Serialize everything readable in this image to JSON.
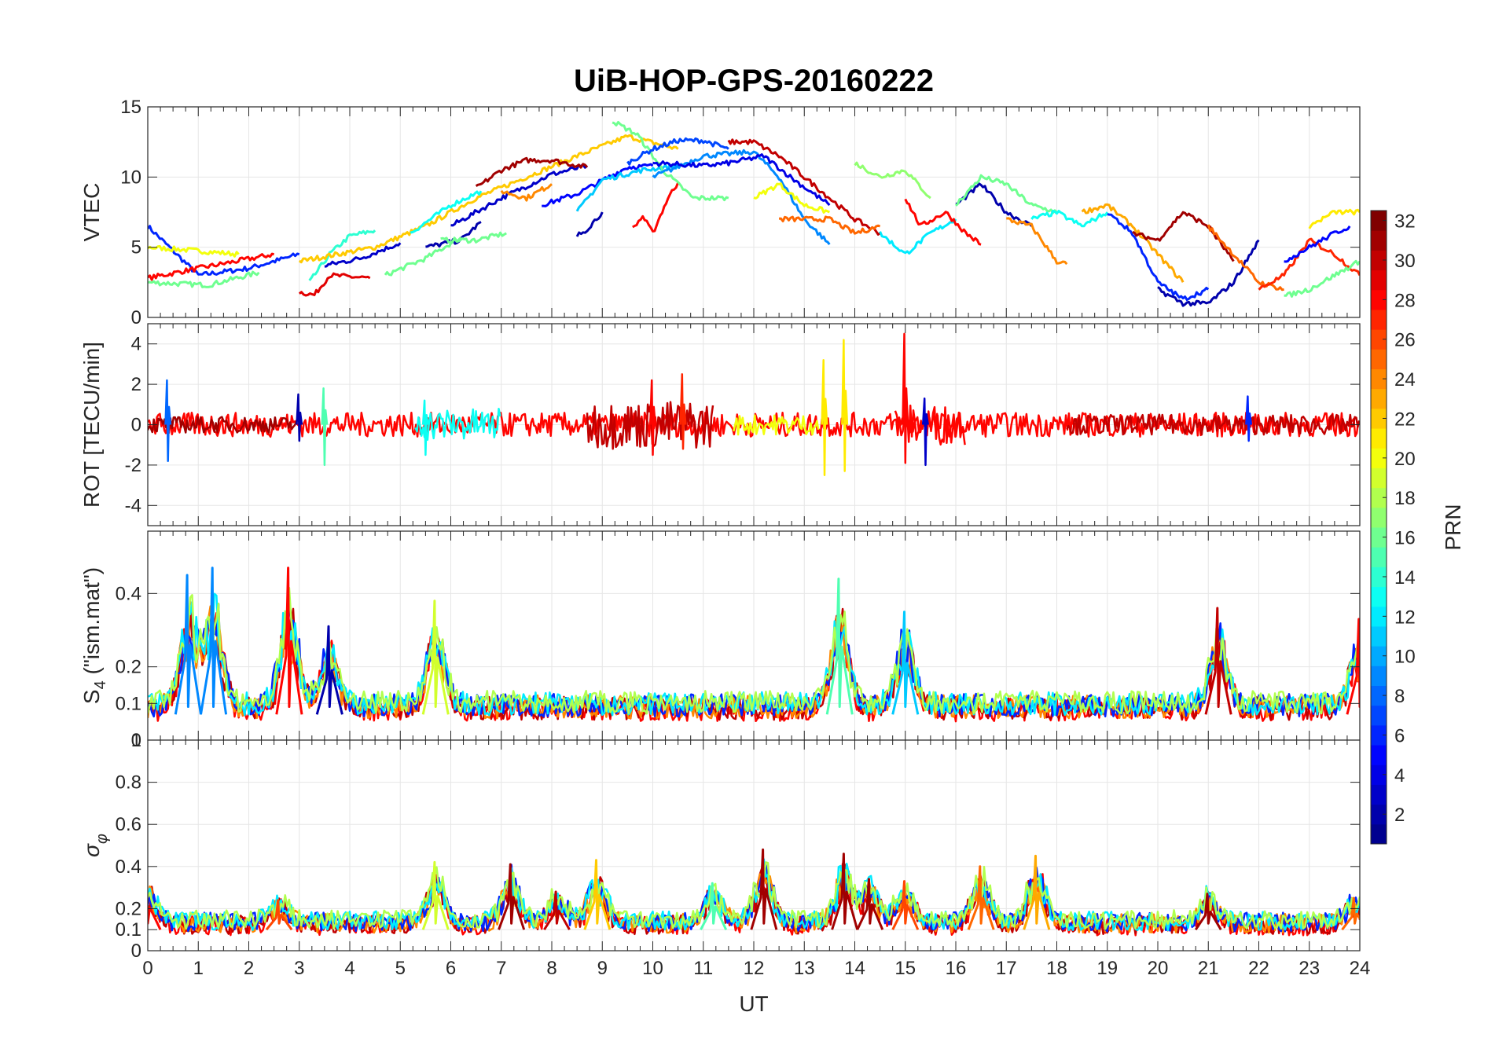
{
  "chart_data": {
    "type": "line",
    "title": "UiB-HOP-GPS-20160222",
    "xlabel": "UT",
    "xlim": [
      0,
      24
    ],
    "x_ticks": [
      "0",
      "1",
      "2",
      "3",
      "4",
      "5",
      "6",
      "7",
      "8",
      "9",
      "10",
      "11",
      "12",
      "13",
      "14",
      "15",
      "16",
      "17",
      "18",
      "19",
      "20",
      "21",
      "22",
      "23",
      "24"
    ],
    "grid": true,
    "colorbar": {
      "label": "PRN",
      "range": [
        1,
        32
      ],
      "ticks": [
        "2",
        "4",
        "6",
        "8",
        "10",
        "12",
        "14",
        "16",
        "18",
        "20",
        "22",
        "24",
        "26",
        "28",
        "30",
        "32"
      ],
      "colormap": [
        "#00008f",
        "#0000ff",
        "#0080ff",
        "#00ffff",
        "#80ff80",
        "#ffff00",
        "#ff8000",
        "#ff0000",
        "#800000"
      ],
      "placement": "right"
    },
    "panels": [
      {
        "ylabel": "VTEC",
        "ylim": [
          0,
          15
        ],
        "y_ticks": [
          "0",
          "5",
          "10",
          "15"
        ],
        "series": [
          {
            "prn": 6,
            "x": [
              0,
              1,
              2,
              3
            ],
            "y": [
              6.5,
              3.0,
              3.5,
              4.5
            ]
          },
          {
            "prn": 20,
            "x": [
              0,
              0.8,
              1.8
            ],
            "y": [
              5.0,
              4.8,
              4.5
            ]
          },
          {
            "prn": 28,
            "x": [
              0,
              1,
              2.5
            ],
            "y": [
              2.8,
              3.5,
              4.5
            ]
          },
          {
            "prn": 16,
            "x": [
              0,
              1.2,
              2.2
            ],
            "y": [
              2.5,
              2.3,
              3.2
            ]
          },
          {
            "prn": 29,
            "x": [
              3,
              3.3,
              3.6,
              4.4
            ],
            "y": [
              1.8,
              1.6,
              3.0,
              2.8
            ]
          },
          {
            "prn": 14,
            "x": [
              3.2,
              3.6,
              4,
              4.5
            ],
            "y": [
              2.5,
              4.5,
              5.8,
              6.2
            ]
          },
          {
            "prn": 22,
            "x": [
              3,
              4.5,
              5.5,
              6.5,
              7.5,
              8.5,
              9.5,
              10.5
            ],
            "y": [
              4.0,
              5.0,
              6.5,
              8.5,
              10.0,
              11.5,
              12.9,
              12.0
            ]
          },
          {
            "prn": 3,
            "x": [
              3.5,
              4.2,
              5
            ],
            "y": [
              3.7,
              4.2,
              5.3
            ]
          },
          {
            "prn": 2,
            "x": [
              5.5,
              6.2,
              6.6
            ],
            "y": [
              5.0,
              5.5,
              6.8
            ]
          },
          {
            "prn": 16,
            "x": [
              4.7,
              5.5,
              6.2
            ],
            "y": [
              3.0,
              4.2,
              5.7
            ]
          },
          {
            "prn": 13,
            "x": [
              5.2,
              6.0,
              6.6
            ],
            "y": [
              6.0,
              8.0,
              9.0
            ]
          },
          {
            "prn": 16,
            "x": [
              5.8,
              6.5,
              7.1
            ],
            "y": [
              5.5,
              5.5,
              6.0
            ]
          },
          {
            "prn": 3,
            "x": [
              6.0,
              7.0,
              8.0,
              8.7
            ],
            "y": [
              6.5,
              8.5,
              10.2,
              10.8
            ]
          },
          {
            "prn": 31,
            "x": [
              6.5,
              7.0,
              7.5,
              8.0,
              8.7
            ],
            "y": [
              9.2,
              10.5,
              11.2,
              11.2,
              10.7
            ]
          },
          {
            "prn": 24,
            "x": [
              7.0,
              7.5,
              8.0
            ],
            "y": [
              9.0,
              8.5,
              9.5
            ]
          },
          {
            "prn": 5,
            "x": [
              7.8,
              8.5,
              9.5,
              10.0
            ],
            "y": [
              8.0,
              8.8,
              10.7,
              10.8
            ]
          },
          {
            "prn": 2,
            "x": [
              8.5,
              8.7,
              9.0
            ],
            "y": [
              5.8,
              6.3,
              7.5
            ]
          },
          {
            "prn": 11,
            "x": [
              8.5,
              9.0,
              9.8,
              10.5
            ],
            "y": [
              7.5,
              9.8,
              10.5,
              10.8
            ]
          },
          {
            "prn": 28,
            "x": [
              9.6,
              9.8,
              10.0,
              10.3,
              10.5
            ],
            "y": [
              6.3,
              7.2,
              6.0,
              8.5,
              9.6
            ]
          },
          {
            "prn": 16,
            "x": [
              9.2,
              9.7,
              10.2,
              10.8,
              11.5
            ],
            "y": [
              14.0,
              13.0,
              10.5,
              8.5,
              8.5
            ]
          },
          {
            "prn": 7,
            "x": [
              9.5,
              10.0,
              10.5,
              11.0,
              11.5
            ],
            "y": [
              11.0,
              12.0,
              12.6,
              12.6,
              12.0
            ]
          },
          {
            "prn": 9,
            "x": [
              10.0,
              11.0,
              12.0,
              12.5,
              13.0,
              13.5
            ],
            "y": [
              10.0,
              11.5,
              11.8,
              10.0,
              7.0,
              5.2
            ]
          },
          {
            "prn": 4,
            "x": [
              10.0,
              11.0,
              11.5,
              12.2,
              12.8,
              13.5
            ],
            "y": [
              11.0,
              10.8,
              11.0,
              11.5,
              9.8,
              8.0
            ]
          },
          {
            "prn": 30,
            "x": [
              11.5,
              12.0,
              12.5,
              13.0,
              13.5,
              14.0,
              14.5
            ],
            "y": [
              12.5,
              12.5,
              11.5,
              10.0,
              8.5,
              7.0,
              6.0
            ]
          },
          {
            "prn": 20,
            "x": [
              12.0,
              12.5,
              13.0,
              13.5
            ],
            "y": [
              8.5,
              9.5,
              8.0,
              7.5
            ]
          },
          {
            "prn": 25,
            "x": [
              12.5,
              13.0,
              13.5,
              14.0,
              14.5
            ],
            "y": [
              7.0,
              7.0,
              7.0,
              6.0,
              6.5
            ]
          },
          {
            "prn": 17,
            "x": [
              14.0,
              14.5,
              15.0,
              15.5
            ],
            "y": [
              11.0,
              10.0,
              10.5,
              8.5
            ]
          },
          {
            "prn": 12,
            "x": [
              14.5,
              15.0,
              15.5,
              16.0
            ],
            "y": [
              6.0,
              4.5,
              6.0,
              7.0
            ]
          },
          {
            "prn": 28,
            "x": [
              15.0,
              15.3,
              15.8,
              16.2,
              16.5
            ],
            "y": [
              8.5,
              6.5,
              7.5,
              6.0,
              5.2
            ]
          },
          {
            "prn": 2,
            "x": [
              16.0,
              16.5,
              17.0,
              17.5
            ],
            "y": [
              8.0,
              9.5,
              7.5,
              6.5
            ]
          },
          {
            "prn": 16,
            "x": [
              16.0,
              16.5,
              17.0,
              17.5,
              18.0
            ],
            "y": [
              8.0,
              10.0,
              9.5,
              8.0,
              7.5
            ]
          },
          {
            "prn": 24,
            "x": [
              17.0,
              17.5,
              18.0,
              18.2
            ],
            "y": [
              7.0,
              6.5,
              4.0,
              3.8
            ]
          },
          {
            "prn": 13,
            "x": [
              17.5,
              18.0,
              18.5,
              19.0
            ],
            "y": [
              7.0,
              7.5,
              6.5,
              7.5
            ]
          },
          {
            "prn": 23,
            "x": [
              18.5,
              19.0,
              19.5,
              20.0,
              20.5
            ],
            "y": [
              7.5,
              8.0,
              6.5,
              4.5,
              2.5
            ]
          },
          {
            "prn": 6,
            "x": [
              19.0,
              19.5,
              20.0,
              20.5,
              21.0
            ],
            "y": [
              7.5,
              6.0,
              2.5,
              1.3,
              2.0
            ]
          },
          {
            "prn": 31,
            "x": [
              19.5,
              20.0,
              20.5,
              21.0,
              21.5
            ],
            "y": [
              6.0,
              5.5,
              7.5,
              6.5,
              4.0
            ]
          },
          {
            "prn": 2,
            "x": [
              20.0,
              20.5,
              21.0,
              21.5,
              22.0
            ],
            "y": [
              2.0,
              1.0,
              1.0,
              2.5,
              5.5
            ]
          },
          {
            "prn": 25,
            "x": [
              21.0,
              21.5,
              22.0,
              22.5
            ],
            "y": [
              6.5,
              4.5,
              2.5,
              2.0
            ]
          },
          {
            "prn": 27,
            "x": [
              22.0,
              22.5,
              23.0,
              23.5,
              24.0
            ],
            "y": [
              2.0,
              3.0,
              5.5,
              4.5,
              3.0
            ]
          },
          {
            "prn": 5,
            "x": [
              22.5,
              23.0,
              23.5,
              23.8
            ],
            "y": [
              4.0,
              5.0,
              6.0,
              6.5
            ]
          },
          {
            "prn": 16,
            "x": [
              22.5,
              23.0,
              23.5,
              24.0
            ],
            "y": [
              1.5,
              2.0,
              3.0,
              4.0
            ]
          },
          {
            "prn": 21,
            "x": [
              23.0,
              23.5,
              24.0
            ],
            "y": [
              6.5,
              7.5,
              7.5
            ]
          }
        ]
      },
      {
        "ylabel": "ROT [TECU/min]",
        "ylim": [
          -5,
          5
        ],
        "y_ticks": [
          "-4",
          "-2",
          "0",
          "2",
          "4"
        ],
        "spikes": [
          {
            "prn": 8,
            "x": 0.4,
            "lo": -1.8,
            "hi": 2.2
          },
          {
            "prn": 2,
            "x": 3.0,
            "lo": -0.8,
            "hi": 1.5
          },
          {
            "prn": 15,
            "x": 3.5,
            "lo": -2.0,
            "hi": 1.8
          },
          {
            "prn": 13,
            "x": 5.5,
            "lo": -1.5,
            "hi": 1.2
          },
          {
            "prn": 28,
            "x": 10.0,
            "lo": -1.5,
            "hi": 2.2
          },
          {
            "prn": 27,
            "x": 10.6,
            "lo": -1.2,
            "hi": 2.5
          },
          {
            "prn": 21,
            "x": 13.4,
            "lo": -2.5,
            "hi": 3.2
          },
          {
            "prn": 21,
            "x": 13.8,
            "lo": -2.3,
            "hi": 4.2
          },
          {
            "prn": 28,
            "x": 15.0,
            "lo": -1.9,
            "hi": 4.5
          },
          {
            "prn": 3,
            "x": 15.4,
            "lo": -2.0,
            "hi": 1.3
          },
          {
            "prn": 6,
            "x": 21.8,
            "lo": -0.8,
            "hi": 1.4
          }
        ],
        "noise_bands": [
          {
            "prn": 28,
            "x": [
              0,
              24
            ],
            "amplitude": 0.6
          },
          {
            "prn": 31,
            "x": [
              0,
              3
            ],
            "amplitude": 0.4
          },
          {
            "prn": 13,
            "x": [
              5.3,
              7
            ],
            "amplitude": 0.8
          },
          {
            "prn": 30,
            "x": [
              8.7,
              11.2
            ],
            "amplitude": 1.2
          },
          {
            "prn": 20,
            "x": [
              11.6,
              13.3
            ],
            "amplitude": 0.5
          },
          {
            "prn": 28,
            "x": [
              14.8,
              16.2
            ],
            "amplitude": 1.0
          },
          {
            "prn": 30,
            "x": [
              18.2,
              24
            ],
            "amplitude": 0.5
          }
        ]
      },
      {
        "ylabel": "S4 (\"ism.mat\")",
        "ylim": [
          0,
          0.57
        ],
        "y_ticks": [
          "0",
          "0.1",
          "0.2",
          "0.4"
        ],
        "baseline": 0.07,
        "peaks": [
          {
            "prn": 9,
            "x": 0.8,
            "y": 0.45
          },
          {
            "prn": 9,
            "x": 1.3,
            "y": 0.47
          },
          {
            "prn": 28,
            "x": 2.8,
            "y": 0.47
          },
          {
            "prn": 2,
            "x": 3.6,
            "y": 0.31
          },
          {
            "prn": 19,
            "x": 5.7,
            "y": 0.38
          },
          {
            "prn": 15,
            "x": 13.7,
            "y": 0.44
          },
          {
            "prn": 11,
            "x": 15.0,
            "y": 0.35
          },
          {
            "prn": 30,
            "x": 21.2,
            "y": 0.36
          },
          {
            "prn": 28,
            "x": 24.0,
            "y": 0.33
          }
        ]
      },
      {
        "ylabel": "σφ",
        "ylim": [
          0,
          1
        ],
        "y_ticks": [
          "0",
          "0.1",
          "0.2",
          "0.4",
          "0.6",
          "0.8",
          "1"
        ],
        "baseline": 0.1,
        "peaks": [
          {
            "prn": 28,
            "x": 0.0,
            "y": 0.31
          },
          {
            "prn": 26,
            "x": 2.6,
            "y": 0.24
          },
          {
            "prn": 19,
            "x": 5.7,
            "y": 0.42
          },
          {
            "prn": 31,
            "x": 7.2,
            "y": 0.41
          },
          {
            "prn": 30,
            "x": 8.1,
            "y": 0.28
          },
          {
            "prn": 22,
            "x": 8.9,
            "y": 0.43
          },
          {
            "prn": 15,
            "x": 11.2,
            "y": 0.32
          },
          {
            "prn": 31,
            "x": 12.2,
            "y": 0.48
          },
          {
            "prn": 31,
            "x": 13.8,
            "y": 0.46
          },
          {
            "prn": 31,
            "x": 14.3,
            "y": 0.34
          },
          {
            "prn": 26,
            "x": 15.0,
            "y": 0.33
          },
          {
            "prn": 25,
            "x": 16.5,
            "y": 0.4
          },
          {
            "prn": 23,
            "x": 17.6,
            "y": 0.45
          },
          {
            "prn": 31,
            "x": 21.0,
            "y": 0.27
          },
          {
            "prn": 25,
            "x": 23.9,
            "y": 0.25
          }
        ]
      }
    ]
  }
}
